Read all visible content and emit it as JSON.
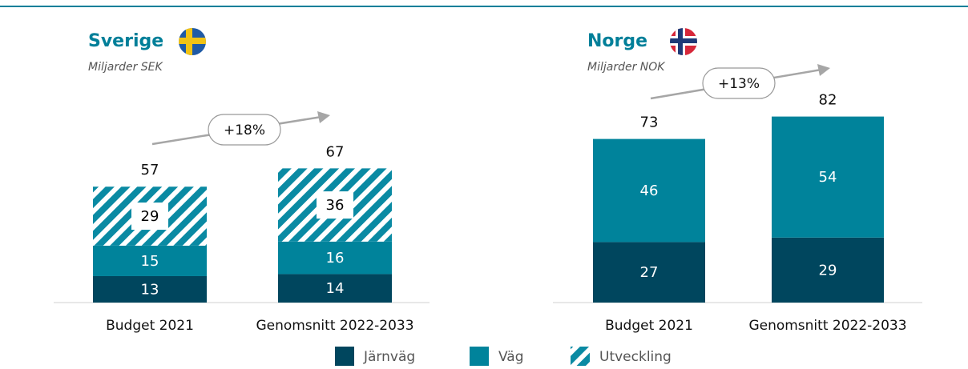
{
  "chart_data": [
    {
      "type": "stacked_bar",
      "title": "Sverige",
      "subtitle": "Miljarder SEK",
      "categories": [
        "Budget 2021",
        "Genomsnitt 2022-2033"
      ],
      "series": [
        {
          "name": "Järnväg",
          "color": "#00465e",
          "values": [
            13,
            14
          ]
        },
        {
          "name": "Väg",
          "color": "#00839b",
          "values": [
            15,
            16
          ]
        },
        {
          "name": "Utveckling",
          "color": "#00839b",
          "pattern": "hatch",
          "values": [
            29,
            36
          ]
        }
      ],
      "totals": [
        57,
        67
      ],
      "annotation": "+18%",
      "ylim": [
        0,
        100
      ]
    },
    {
      "type": "stacked_bar",
      "title": "Norge",
      "subtitle": "Miljarder NOK",
      "categories": [
        "Budget 2021",
        "Genomsnitt 2022-2033"
      ],
      "series": [
        {
          "name": "Järnväg",
          "color": "#00465e",
          "values": [
            27,
            29
          ]
        },
        {
          "name": "Väg",
          "color": "#00839b",
          "values": [
            46,
            54
          ]
        }
      ],
      "totals": [
        73,
        82
      ],
      "annotation": "+13%",
      "ylim": [
        0,
        100
      ]
    }
  ]
}
